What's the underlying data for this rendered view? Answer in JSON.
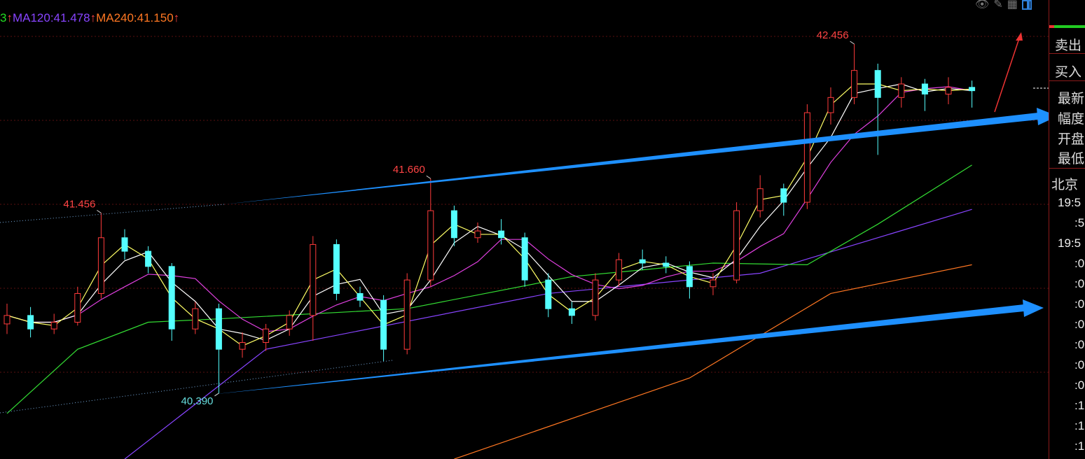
{
  "legend": [
    {
      "text": "3",
      "color": "#22dd22"
    },
    {
      "text": "↑",
      "color": "#ff4444"
    },
    {
      "text": "MA120:41.478",
      "color": "#8844ff"
    },
    {
      "text": "↑",
      "color": "#ff4444"
    },
    {
      "text": "MA240:41.150",
      "color": "#ff7722"
    },
    {
      "text": "↑",
      "color": "#ff4444"
    }
  ],
  "toolbar": {
    "icons": [
      "eye-icon",
      "pencil-icon",
      "grid-icon",
      "layout-icon"
    ]
  },
  "panel": {
    "sell": "卖出",
    "buy": "买入",
    "quote": [
      "最新",
      "幅度",
      "开盘",
      "最低"
    ],
    "beijing": "北京",
    "times": [
      "19:5",
      ":5",
      "19:5",
      ":0",
      ":0",
      ":0",
      ":0",
      ":0",
      ":0",
      ":0",
      ":1",
      ":1",
      ":1"
    ]
  },
  "chart_data": {
    "type": "candlestick",
    "ylim": [
      40.0,
      42.6
    ],
    "colors": {
      "up": "#ff3b3b",
      "down": "#54ffff",
      "ma_fast": "#ffff66",
      "ma_mid": "#ffffff",
      "ma20": "#e040e0",
      "ma60": "#33dd33",
      "ma120": "#8844ff",
      "ma240": "#ff7722",
      "trend": "#1e90ff"
    },
    "annotations": [
      {
        "text": "41.456",
        "price": 41.456,
        "index": 4,
        "color": "#ff4444"
      },
      {
        "text": "40.390",
        "price": 40.39,
        "index": 9,
        "color": "#66dddd"
      },
      {
        "text": "41.660",
        "price": 41.66,
        "index": 18,
        "color": "#ff4444"
      },
      {
        "text": "42.456",
        "price": 42.456,
        "index": 36,
        "color": "#ff4444"
      }
    ],
    "candles": [
      [
        40.8,
        40.92,
        40.74,
        40.85
      ],
      [
        40.85,
        40.9,
        40.72,
        40.77
      ],
      [
        40.77,
        40.86,
        40.74,
        40.81
      ],
      [
        40.81,
        41.02,
        40.79,
        40.98
      ],
      [
        40.98,
        41.456,
        40.95,
        41.31
      ],
      [
        41.31,
        41.36,
        41.18,
        41.23
      ],
      [
        41.23,
        41.26,
        41.1,
        41.14
      ],
      [
        41.14,
        41.16,
        40.7,
        40.77
      ],
      [
        40.77,
        40.93,
        40.74,
        40.89
      ],
      [
        40.89,
        40.92,
        40.39,
        40.65
      ],
      [
        40.65,
        40.75,
        40.6,
        40.69
      ],
      [
        40.69,
        40.8,
        40.64,
        40.77
      ],
      [
        40.77,
        40.88,
        40.73,
        40.85
      ],
      [
        40.85,
        41.32,
        40.7,
        41.27
      ],
      [
        41.27,
        41.3,
        40.94,
        40.98
      ],
      [
        40.98,
        41.02,
        40.9,
        40.94
      ],
      [
        40.94,
        40.97,
        40.58,
        40.65
      ],
      [
        40.65,
        41.1,
        40.62,
        41.06
      ],
      [
        41.06,
        41.66,
        41.02,
        41.47
      ],
      [
        41.47,
        41.5,
        41.26,
        41.31
      ],
      [
        41.31,
        41.4,
        41.28,
        41.35
      ],
      [
        41.35,
        41.42,
        41.27,
        41.31
      ],
      [
        41.31,
        41.34,
        41.02,
        41.06
      ],
      [
        41.06,
        41.1,
        40.84,
        40.89
      ],
      [
        40.89,
        40.93,
        40.8,
        40.85
      ],
      [
        40.85,
        41.1,
        40.82,
        41.06
      ],
      [
        41.06,
        41.22,
        41.02,
        41.18
      ],
      [
        41.18,
        41.24,
        41.12,
        41.16
      ],
      [
        41.16,
        41.2,
        41.1,
        41.14
      ],
      [
        41.14,
        41.17,
        40.95,
        41.02
      ],
      [
        41.02,
        41.1,
        40.97,
        41.06
      ],
      [
        41.06,
        41.52,
        41.04,
        41.47
      ],
      [
        41.47,
        41.68,
        41.43,
        41.6
      ],
      [
        41.6,
        41.63,
        41.44,
        41.52
      ],
      [
        41.52,
        42.1,
        41.48,
        42.05
      ],
      [
        42.05,
        42.2,
        41.98,
        42.14
      ],
      [
        42.14,
        42.456,
        42.1,
        42.3
      ],
      [
        42.3,
        42.34,
        41.8,
        42.14
      ],
      [
        42.14,
        42.26,
        42.08,
        42.22
      ],
      [
        42.22,
        42.25,
        42.06,
        42.16
      ],
      [
        42.16,
        42.26,
        42.1,
        42.2
      ],
      [
        42.2,
        42.24,
        42.08,
        42.18
      ]
    ],
    "ma60": [
      [
        0,
        40.27
      ],
      [
        3,
        40.65
      ],
      [
        6,
        40.81
      ],
      [
        9,
        40.83
      ],
      [
        17,
        40.89
      ],
      [
        24,
        41.08
      ],
      [
        30,
        41.16
      ],
      [
        34,
        41.15
      ],
      [
        37,
        41.39
      ],
      [
        41,
        41.74
      ]
    ],
    "ma120": [
      [
        5,
        40.0
      ],
      [
        11,
        40.65
      ],
      [
        23,
        40.98
      ],
      [
        32,
        41.1
      ],
      [
        41,
        41.478
      ]
    ],
    "ma240": [
      [
        19,
        40.0
      ],
      [
        29,
        40.48
      ],
      [
        35,
        40.98
      ],
      [
        41,
        41.15
      ]
    ]
  }
}
